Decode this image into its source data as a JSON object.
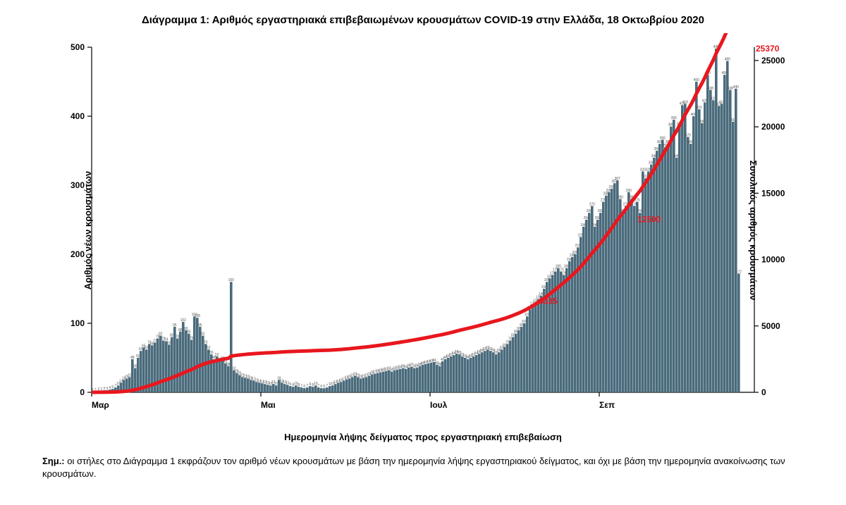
{
  "title": "Διάγραμμα 1: Αριθμός εργαστηριακά επιβεβαιωμένων κρουσμάτων COVID-19 στην Ελλάδα, 18 Οκτωβρίου 2020",
  "xlabel": "Ημερομηνία λήψης δείγματος προς εργαστηριακή επιβεβαίωση",
  "ylabel_left": "Αριθμός νέων κρουσμάτων",
  "ylabel_right": "Συνολικός αριθμός κρουσμάτων",
  "note_prefix": "Σημ.:",
  "note_body": " οι στήλες στο Διάγραμμα 1 εκφράζουν τον αριθμό νέων κρουσμάτων με βάση την ημερομηνία λήψης εργαστηριακού δείγματος, και όχι με βάση την ημερομηνία ανακοίνωσης των κρουσμάτων.",
  "chart": {
    "type": "bar+line",
    "background_color": "#ffffff",
    "bar_color": "#4a6b7c",
    "line_color": "#e8171e",
    "line_width": 5,
    "title_fontsize": 15,
    "label_fontsize": 13,
    "tick_fontsize": 12,
    "left_y": {
      "min": 0,
      "max": 500,
      "tick_step": 100,
      "ticks": [
        0,
        100,
        200,
        300,
        400,
        500
      ]
    },
    "right_y": {
      "min": 0,
      "max": 26000,
      "tick_step": 5000,
      "ticks": [
        0,
        5000,
        10000,
        15000,
        20000,
        25000
      ]
    },
    "x_ticks": [
      {
        "label": "Μαρ",
        "index": 0
      },
      {
        "label": "Μαι",
        "index": 60
      },
      {
        "label": "Ιουλ",
        "index": 120
      },
      {
        "label": "Σεπ",
        "index": 180
      }
    ],
    "n_days": 235,
    "daily_cases": [
      1,
      1,
      2,
      2,
      3,
      3,
      4,
      5,
      7,
      10,
      14,
      18,
      20,
      22,
      48,
      35,
      50,
      60,
      65,
      62,
      70,
      68,
      72,
      78,
      82,
      75,
      74,
      69,
      80,
      95,
      78,
      88,
      102,
      90,
      85,
      76,
      110,
      108,
      95,
      82,
      70,
      62,
      55,
      48,
      52,
      45,
      47,
      42,
      38,
      160,
      32,
      28,
      25,
      22,
      21,
      20,
      18,
      17,
      15,
      14,
      13,
      12,
      11,
      10,
      12,
      10,
      18,
      14,
      12,
      11,
      9,
      8,
      10,
      8,
      7,
      6,
      7,
      9,
      8,
      10,
      7,
      6,
      6,
      7,
      9,
      10,
      12,
      14,
      15,
      17,
      19,
      20,
      22,
      24,
      22,
      20,
      21,
      22,
      24,
      26,
      27,
      28,
      29,
      30,
      31,
      32,
      30,
      32,
      33,
      34,
      35,
      34,
      36,
      37,
      35,
      36,
      38,
      40,
      41,
      42,
      43,
      44,
      40,
      38,
      45,
      48,
      50,
      52,
      54,
      56,
      55,
      52,
      50,
      48,
      50,
      52,
      54,
      56,
      58,
      60,
      62,
      60,
      58,
      55,
      58,
      62,
      66,
      70,
      75,
      80,
      85,
      90,
      95,
      100,
      110,
      120,
      126,
      130,
      135,
      140,
      150,
      160,
      165,
      170,
      175,
      180,
      175,
      170,
      180,
      190,
      196,
      200,
      210,
      225,
      240,
      250,
      260,
      270,
      240,
      250,
      260,
      276,
      285,
      290,
      295,
      303,
      307,
      280,
      260,
      270,
      290,
      280,
      270,
      276,
      260,
      320,
      310,
      320,
      330,
      340,
      350,
      360,
      366,
      355,
      360,
      385,
      395,
      340,
      386,
      416,
      418,
      370,
      360,
      400,
      450,
      410,
      390,
      420,
      460,
      438,
      423,
      498,
      415,
      418,
      460,
      480,
      438,
      392,
      440,
      172
    ],
    "annotations": [
      {
        "label": "6335",
        "day_index": 157,
        "value_right": 6335
      },
      {
        "label": "12500",
        "day_index": 192,
        "value_right": 12500
      },
      {
        "label": "25370",
        "day_index": 234,
        "value_right": 25370
      }
    ]
  }
}
